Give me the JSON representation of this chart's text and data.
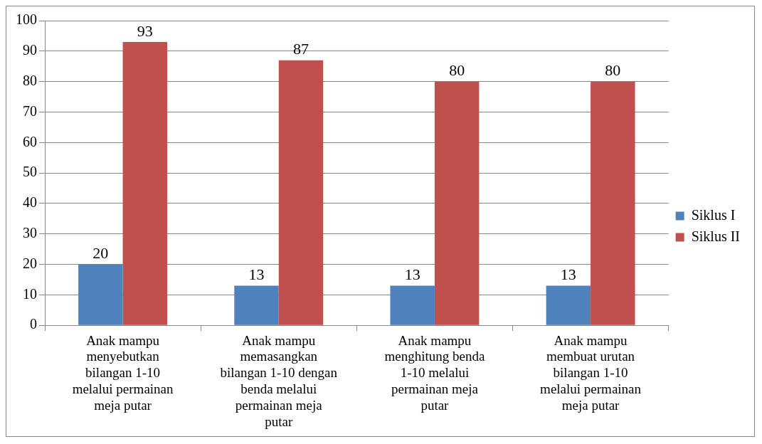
{
  "chart_data": {
    "type": "bar",
    "categories": [
      "Anak mampu menyebutkan bilangan 1-10 melalui permainan meja putar",
      "Anak mampu memasangkan bilangan 1-10 dengan benda melalui permainan meja putar",
      "Anak mampu menghitung benda 1-10 melalui permainan meja putar",
      "Anak mampu membuat urutan bilangan 1-10 melalui permainan meja putar"
    ],
    "series": [
      {
        "name": "Siklus I",
        "color": "#4f81bd",
        "values": [
          20,
          13,
          13,
          13
        ]
      },
      {
        "name": "Siklus II",
        "color": "#c0504d",
        "values": [
          93,
          87,
          80,
          80
        ]
      }
    ],
    "ylim": [
      0,
      100
    ],
    "yticks": [
      0,
      10,
      20,
      30,
      40,
      50,
      60,
      70,
      80,
      90,
      100
    ],
    "grid": "y",
    "legend": "right",
    "data_labels": true
  }
}
